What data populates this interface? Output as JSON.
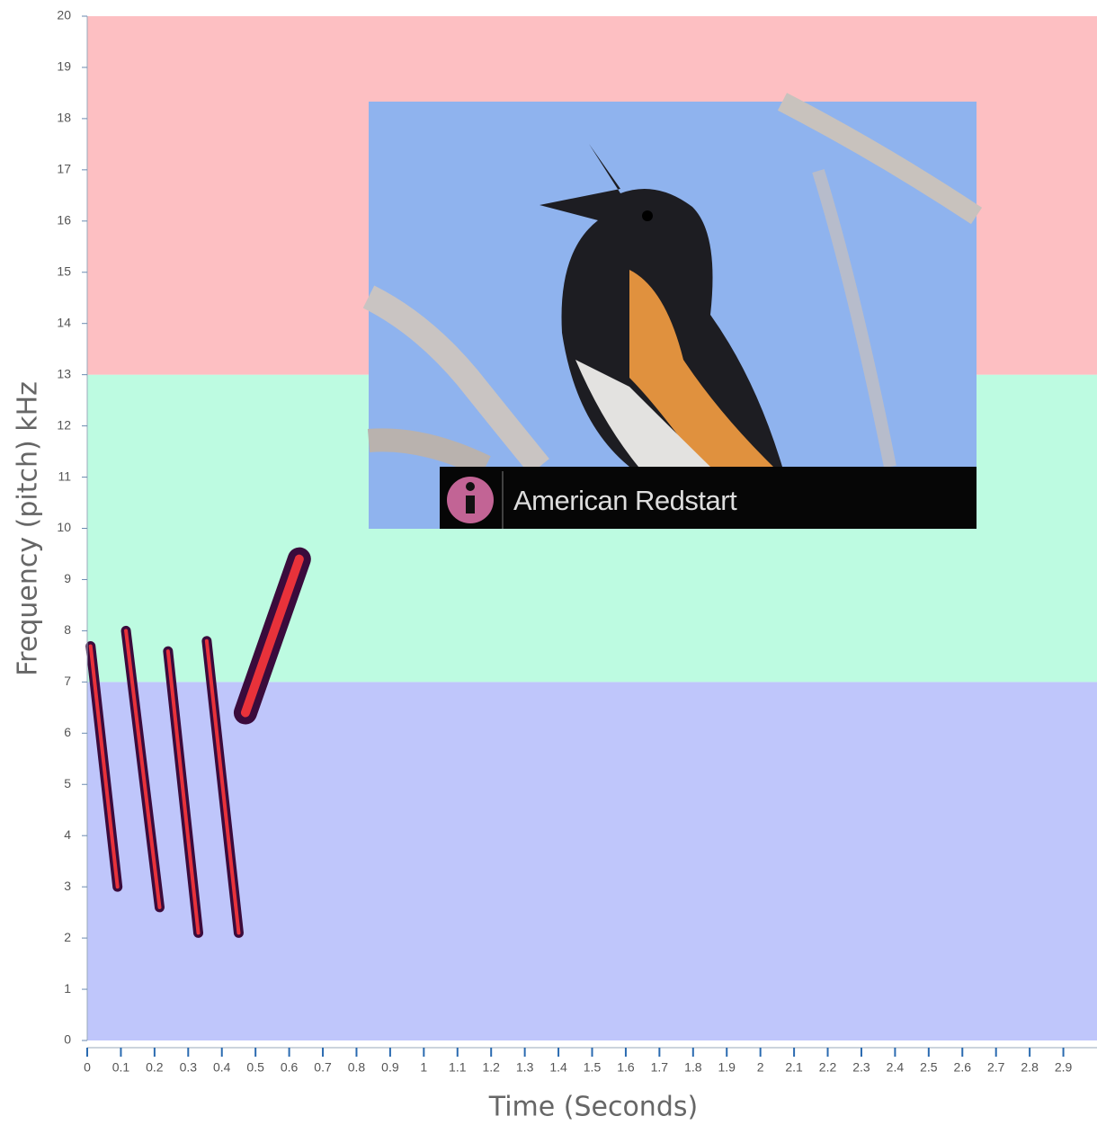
{
  "chart_data": {
    "type": "spectrogram",
    "xlabel": "Time (Seconds)",
    "ylabel": "Frequency (pitch) kHz",
    "xlim": [
      0,
      3
    ],
    "ylim": [
      0,
      20
    ],
    "xticks": [
      0,
      0.1,
      0.2,
      0.3,
      0.4,
      0.5,
      0.6,
      0.7,
      0.8,
      0.9,
      1,
      1.1,
      1.2,
      1.3,
      1.4,
      1.5,
      1.6,
      1.7,
      1.8,
      1.9,
      2,
      2.1,
      2.2,
      2.3,
      2.4,
      2.5,
      2.6,
      2.7,
      2.8,
      2.9
    ],
    "yticks": [
      0,
      1,
      2,
      3,
      4,
      5,
      6,
      7,
      8,
      9,
      10,
      11,
      12,
      13,
      14,
      15,
      16,
      17,
      18,
      19,
      20
    ],
    "bands": [
      {
        "from": 0,
        "to": 7,
        "color": "#bfc6fb"
      },
      {
        "from": 7,
        "to": 13,
        "color": "#bdfbe1"
      },
      {
        "from": 13,
        "to": 20,
        "color": "#fdbfc2"
      }
    ],
    "notes": [
      {
        "x": [
          0.01,
          0.09
        ],
        "y": [
          7.7,
          3.0
        ]
      },
      {
        "x": [
          0.115,
          0.215
        ],
        "y": [
          8.0,
          2.6
        ]
      },
      {
        "x": [
          0.24,
          0.33
        ],
        "y": [
          7.6,
          2.1
        ]
      },
      {
        "x": [
          0.355,
          0.45
        ],
        "y": [
          7.8,
          2.1
        ]
      },
      {
        "x": [
          0.47,
          0.63
        ],
        "y": [
          6.4,
          9.4
        ]
      }
    ],
    "note_color": "#3a0b3c",
    "note_core_color": "#e8323a",
    "inset": {
      "caption": "American Redstart"
    }
  }
}
